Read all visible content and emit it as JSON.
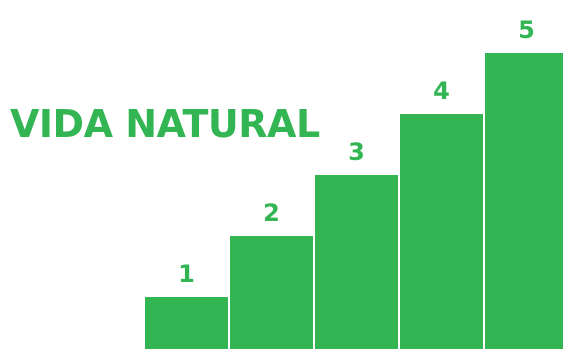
{
  "title": "VIDA NATURAL",
  "colors": {
    "accent": "#33b554",
    "divider": "#ffffff",
    "background": "#ffffff"
  },
  "chart_data": {
    "type": "bar",
    "categories": [
      "1",
      "2",
      "3",
      "4",
      "5"
    ],
    "values": [
      1,
      2,
      3,
      4,
      5
    ],
    "data_labels": [
      "1",
      "2",
      "3",
      "4",
      "5"
    ],
    "title": "VIDA NATURAL",
    "xlabel": "",
    "ylabel": "",
    "ylim": [
      0,
      5
    ],
    "grid": false,
    "legend": "none"
  }
}
